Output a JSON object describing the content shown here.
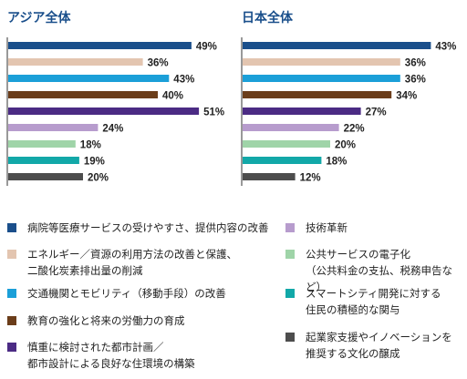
{
  "chart_data": [
    {
      "type": "bar",
      "title": "アジア全体",
      "categories": [
        "病院等医療サービスの受けやすさ、提供内容の改善",
        "エネルギー／資源の利用方法の改善と保護、二酸化炭素排出量の削減",
        "交通機関とモビリティ（移動手段）の改善",
        "教育の強化と将来の労働力の育成",
        "慎重に検討された都市計画／都市設計による良好な住環境の構築",
        "技術革新",
        "公共サービスの電子化（公共料金の支払、税務申告など）",
        "スマートシティ開発に対する住民の積極的な関与",
        "起業家支援やイノベーションを推奨する文化の醸成"
      ],
      "values": [
        49,
        36,
        43,
        40,
        51,
        24,
        18,
        19,
        20
      ],
      "labels": [
        "49%",
        "36%",
        "43%",
        "40%",
        "51%",
        "24%",
        "18%",
        "19%",
        "20%"
      ],
      "xlim": [
        0,
        60
      ]
    },
    {
      "type": "bar",
      "title": "日本全体",
      "categories": [
        "病院等医療サービスの受けやすさ、提供内容の改善",
        "エネルギー／資源の利用方法の改善と保護、二酸化炭素排出量の削減",
        "交通機関とモビリティ（移動手段）の改善",
        "教育の強化と将来の労働力の育成",
        "慎重に検討された都市計画／都市設計による良好な住環境の構築",
        "技術革新",
        "公共サービスの電子化（公共料金の支払、税務申告など）",
        "スマートシティ開発に対する住民の積極的な関与",
        "起業家支援やイノベーションを推奨する文化の醸成"
      ],
      "values": [
        43,
        36,
        36,
        34,
        27,
        22,
        20,
        18,
        12
      ],
      "labels": [
        "43%",
        "36%",
        "36%",
        "34%",
        "27%",
        "22%",
        "20%",
        "18%",
        "12%"
      ],
      "xlim": [
        0,
        60
      ]
    }
  ],
  "colors": [
    "#1a4f8b",
    "#e3c5b0",
    "#1b9fd8",
    "#6b3d1a",
    "#4b2b84",
    "#b79ccd",
    "#9fd4a8",
    "#12a8a8",
    "#4d4d4d"
  ],
  "legend": [
    {
      "text": "病院等医療サービスの受けやすさ、提供内容の改善"
    },
    {
      "text": "エネルギー／資源の利用方法の改善と保護、\n二酸化炭素排出量の削減"
    },
    {
      "text": "交通機関とモビリティ（移動手段）の改善"
    },
    {
      "text": "教育の強化と将来の労働力の育成"
    },
    {
      "text": "慎重に検討された都市計画／\n都市設計による良好な住環境の構築"
    },
    {
      "text": "技術革新"
    },
    {
      "text": "公共サービスの電子化\n（公共料金の支払、税務申告など）"
    },
    {
      "text": "スマートシティ開発に対する\n住民の積極的な関与"
    },
    {
      "text": "起業家支援やイノベーションを\n推奨する文化の醸成"
    }
  ]
}
